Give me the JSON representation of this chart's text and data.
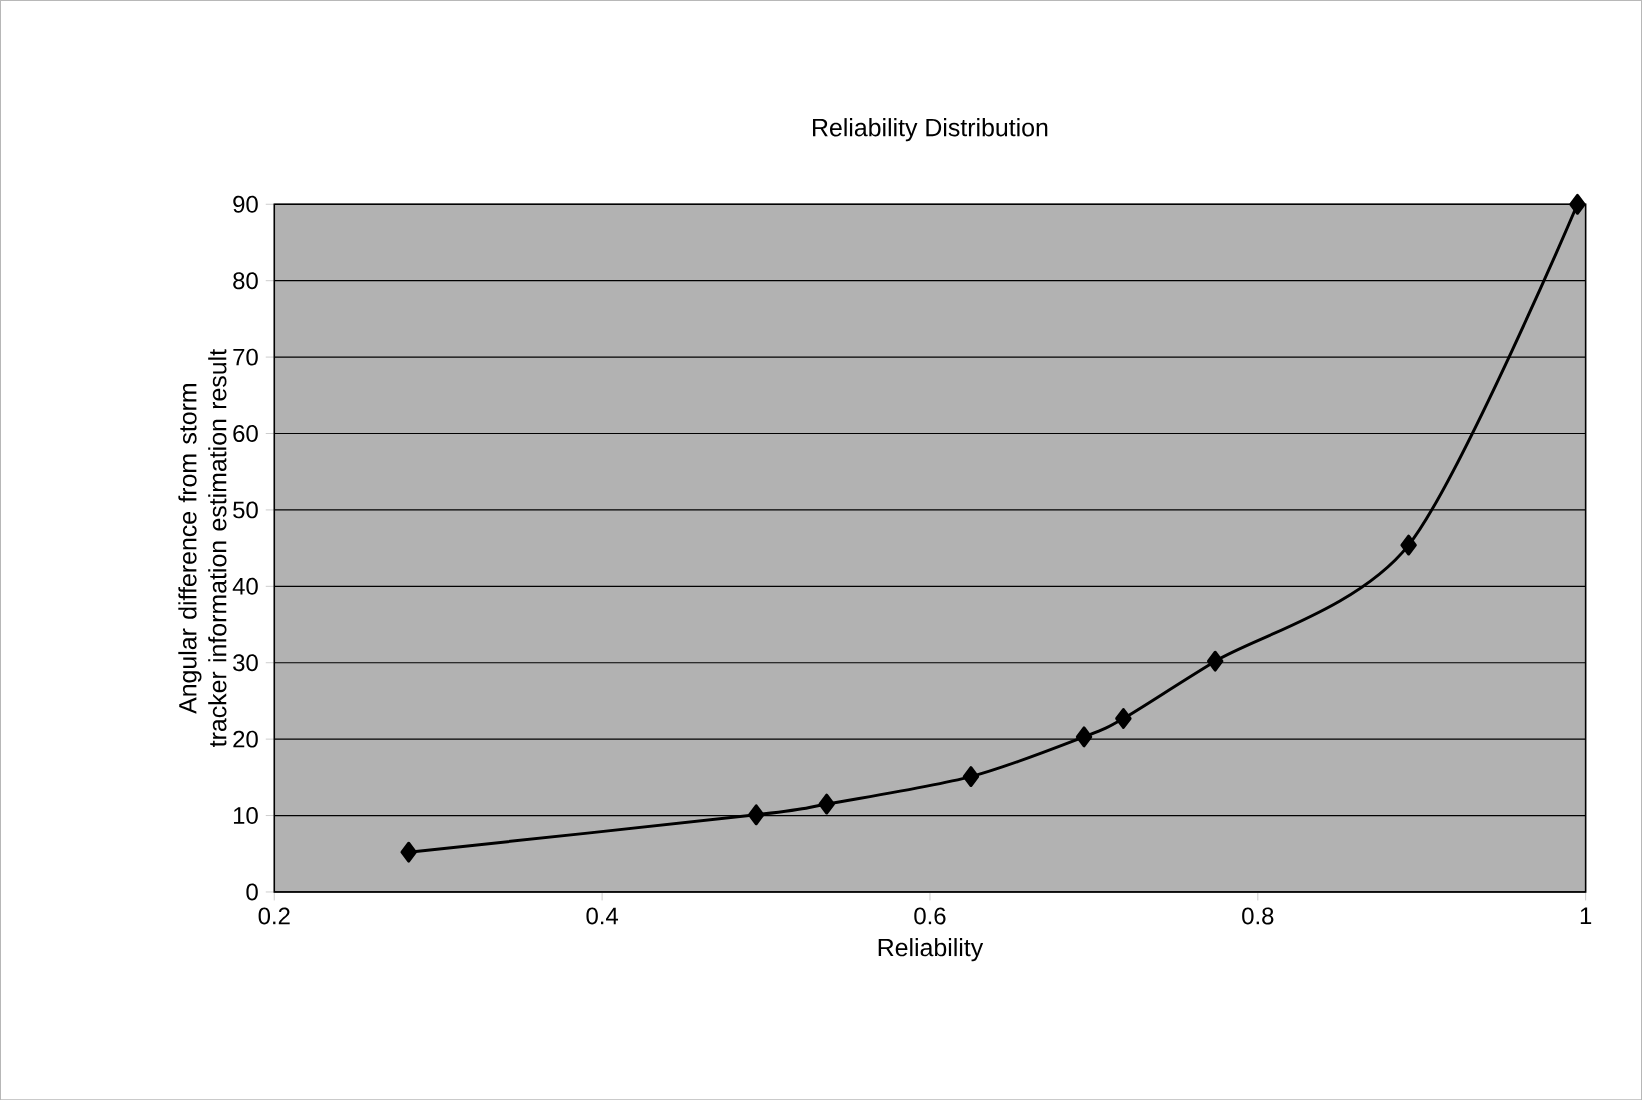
{
  "chart_data": {
    "type": "line",
    "title": "Reliability Distribution",
    "xlabel": "Reliability",
    "ylabel": "Angular difference from storm tracker information estimation result",
    "x": [
      0.282,
      0.494,
      0.537,
      0.625,
      0.694,
      0.718,
      0.774,
      0.892,
      0.995
    ],
    "series": [
      {
        "color": "#000000",
        "values": [
          5.2,
          10.1,
          11.5,
          15.1,
          20.3,
          22.7,
          30.2,
          45.4,
          90
        ]
      }
    ],
    "xlim": [
      0.2,
      1.0
    ],
    "ylim": [
      0,
      90
    ],
    "xticks": [
      0.2,
      0.4,
      0.6,
      0.8,
      1
    ],
    "yticks": [
      0,
      10,
      20,
      30,
      40,
      50,
      60,
      70,
      80,
      90
    ],
    "grid": "y",
    "marker": "diamond",
    "line_style": "solid"
  }
}
